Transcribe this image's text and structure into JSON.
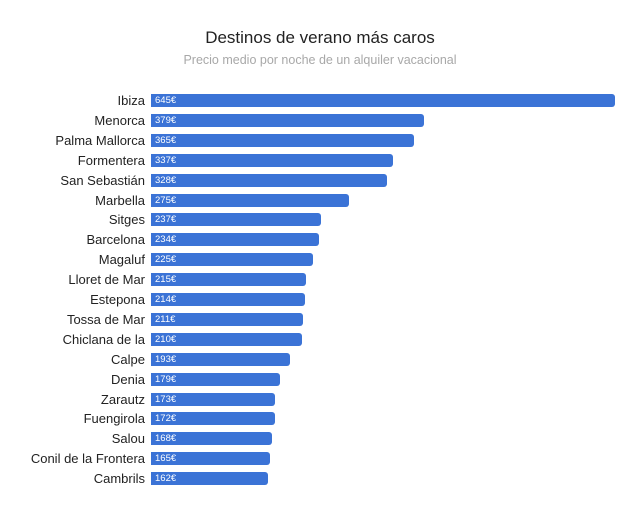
{
  "header": {
    "title": "Destinos de verano más caros",
    "subtitle": "Precio medio por noche de un alquiler vacacional"
  },
  "style": {
    "bar_color": "#3b73d6"
  },
  "chart_data": {
    "type": "bar",
    "orientation": "horizontal",
    "title": "Destinos de verano más caros",
    "subtitle": "Precio medio por noche de un alquiler vacacional",
    "xlabel": "",
    "ylabel": "",
    "unit": "€",
    "grid": false,
    "legend": null,
    "xlim": [
      0,
      645
    ],
    "categories": [
      "Ibiza",
      "Menorca",
      "Palma Mallorca",
      "Formentera",
      "San Sebastián",
      "Marbella",
      "Sitges",
      "Barcelona",
      "Magaluf",
      "Lloret de Mar",
      "Estepona",
      "Tossa de Mar",
      "Chiclana de la",
      "Calpe",
      "Denia",
      "Zarautz",
      "Fuengirola",
      "Salou",
      "Conil de la Frontera",
      "Cambrils"
    ],
    "values": [
      645,
      379,
      365,
      337,
      328,
      275,
      237,
      234,
      225,
      215,
      214,
      211,
      210,
      193,
      179,
      173,
      172,
      168,
      165,
      162
    ],
    "value_labels": [
      "645€",
      "379€",
      "365€",
      "337€",
      "328€",
      "275€",
      "237€",
      "234€",
      "225€",
      "215€",
      "214€",
      "211€",
      "210€",
      "193€",
      "179€",
      "173€",
      "172€",
      "168€",
      "165€",
      "162€"
    ]
  }
}
